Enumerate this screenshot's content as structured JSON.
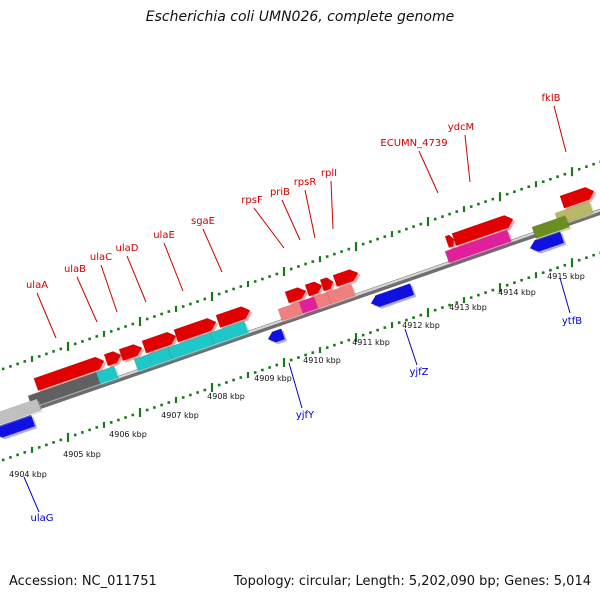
{
  "title": "Escherichia coli UMN026, complete genome",
  "footer": {
    "accession": "Accession: NC_011751",
    "summary": "Topology: circular; Length: 5,202,090 bp; Genes: 5,014"
  },
  "colors": {
    "background": "#ffffff",
    "backbone": "#8c8c8c",
    "tick": "#1a7a1a",
    "forward_label": "#cc0000",
    "reverse_label": "#0000cc",
    "coordinate_text": "#111111"
  },
  "coordinates": [
    {
      "label": "4904 kbp"
    },
    {
      "label": "4905 kbp"
    },
    {
      "label": "4906 kbp"
    },
    {
      "label": "4907 kbp"
    },
    {
      "label": "4908 kbp"
    },
    {
      "label": "4909 kbp"
    },
    {
      "label": "4910 kbp"
    },
    {
      "label": "4911 kbp"
    },
    {
      "label": "4912 kbp"
    },
    {
      "label": "4913 kbp"
    },
    {
      "label": "4914 kbp"
    },
    {
      "label": "4915 kbp"
    }
  ],
  "forward_labels": [
    {
      "name": "ulaA"
    },
    {
      "name": "ulaB"
    },
    {
      "name": "ulaC"
    },
    {
      "name": "ulaD"
    },
    {
      "name": "ulaE"
    },
    {
      "name": "sgaE"
    },
    {
      "name": "rpsF"
    },
    {
      "name": "priB"
    },
    {
      "name": "rpsR"
    },
    {
      "name": "rplI"
    },
    {
      "name": "ECUMN_4739"
    },
    {
      "name": "ydcM"
    },
    {
      "name": "fklB"
    }
  ],
  "reverse_labels": [
    {
      "name": "ulaG"
    },
    {
      "name": "yjfY"
    },
    {
      "name": "yjfZ"
    },
    {
      "name": "ytfB"
    }
  ],
  "features": [
    {
      "id": "ulaA-gene",
      "strand": "forward",
      "color": "#e00000"
    },
    {
      "id": "ulaA-cds",
      "strand": "forward",
      "color": "#606060"
    },
    {
      "id": "ulaB-gene",
      "strand": "forward",
      "color": "#e00000"
    },
    {
      "id": "ulaB-cds",
      "strand": "forward",
      "color": "#1ec8c8"
    },
    {
      "id": "ulaC-gene",
      "strand": "forward",
      "color": "#e00000"
    },
    {
      "id": "ulaD-gene",
      "strand": "forward",
      "color": "#e00000"
    },
    {
      "id": "ulaD-cds",
      "strand": "forward",
      "color": "#1ec8c8"
    },
    {
      "id": "ulaE-gene",
      "strand": "forward",
      "color": "#e00000"
    },
    {
      "id": "ulaE-cds",
      "strand": "forward",
      "color": "#1ec8c8"
    },
    {
      "id": "sgaE-gene",
      "strand": "forward",
      "color": "#e00000"
    },
    {
      "id": "sgaE-cds",
      "strand": "forward",
      "color": "#1ec8c8"
    },
    {
      "id": "rpsF-gene",
      "strand": "forward",
      "color": "#e00000"
    },
    {
      "id": "rpsF-cds",
      "strand": "forward",
      "color": "#f08080"
    },
    {
      "id": "priB-gene",
      "strand": "forward",
      "color": "#e00000"
    },
    {
      "id": "priB-cds",
      "strand": "forward",
      "color": "#e0209a"
    },
    {
      "id": "rpsR-gene",
      "strand": "forward",
      "color": "#e00000"
    },
    {
      "id": "rpsR-cds",
      "strand": "forward",
      "color": "#f08080"
    },
    {
      "id": "rplI-gene",
      "strand": "forward",
      "color": "#e00000"
    },
    {
      "id": "rplI-cds",
      "strand": "forward",
      "color": "#f08080"
    },
    {
      "id": "ECUMN_4739-gene",
      "strand": "forward",
      "color": "#e00000"
    },
    {
      "id": "ydcM-gene",
      "strand": "forward",
      "color": "#e00000"
    },
    {
      "id": "ydcM-cds",
      "strand": "forward",
      "color": "#e0209a"
    },
    {
      "id": "fklB-gene",
      "strand": "forward",
      "color": "#e00000"
    },
    {
      "id": "fklB-cds",
      "strand": "forward",
      "color": "#b8b868"
    },
    {
      "id": "ulaG-gene",
      "strand": "reverse",
      "color": "#1010e0"
    },
    {
      "id": "ulaG-cds",
      "strand": "reverse",
      "color": "#c0c0c0"
    },
    {
      "id": "yjfY-gene",
      "strand": "reverse",
      "color": "#1010e0"
    },
    {
      "id": "yjfZ-gene",
      "strand": "reverse",
      "color": "#1010e0"
    },
    {
      "id": "ytfB-gene",
      "strand": "reverse",
      "color": "#1010e0"
    },
    {
      "id": "ytfB-cds",
      "strand": "reverse",
      "color": "#6b8e23"
    }
  ]
}
